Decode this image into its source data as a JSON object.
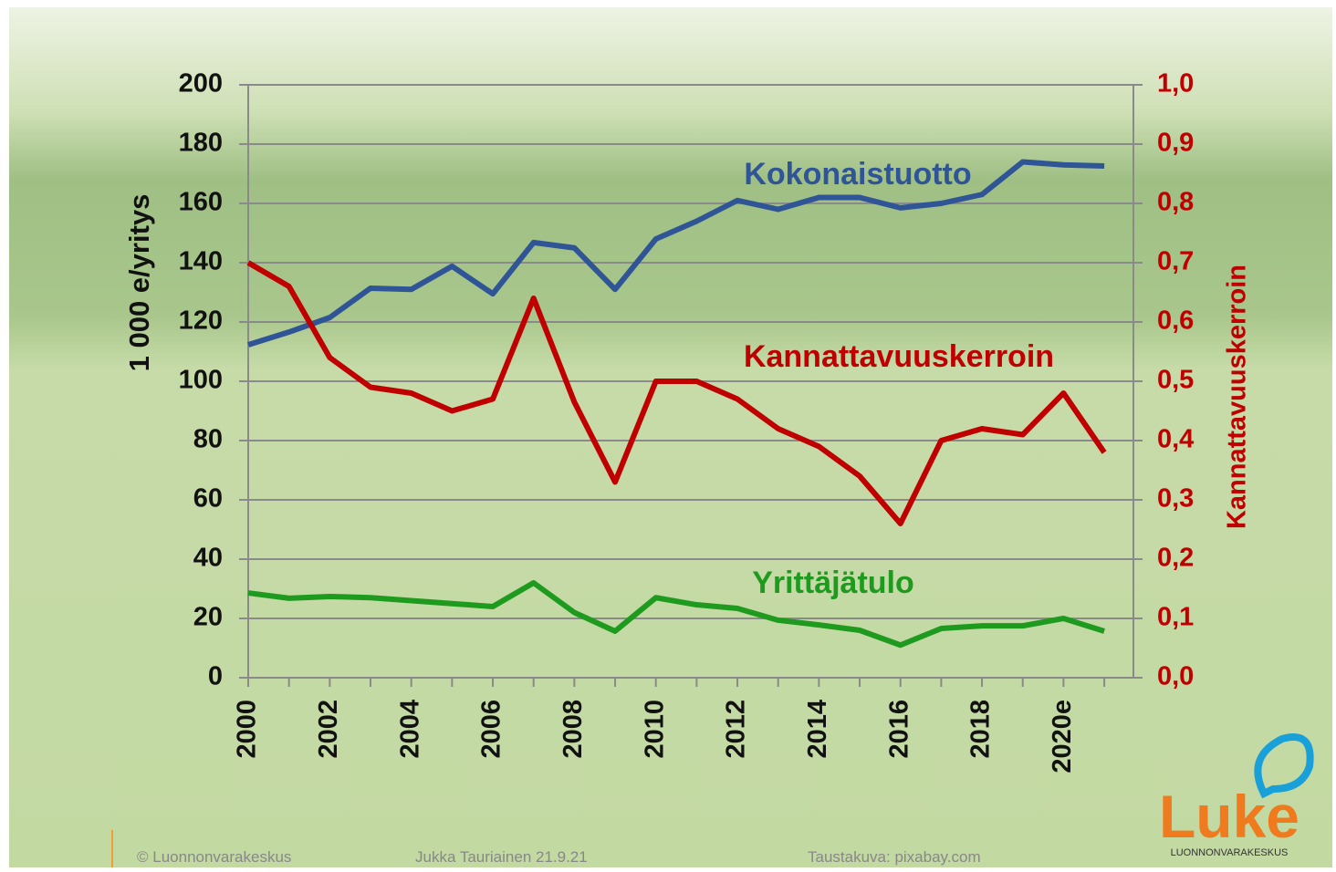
{
  "chart_data": {
    "type": "line",
    "categories": [
      "2000",
      null,
      "2002",
      null,
      "2004",
      null,
      "2006",
      null,
      "2008",
      null,
      "2010",
      null,
      "2012",
      null,
      "2014",
      null,
      "2016",
      null,
      "2018",
      null,
      "2020e",
      null
    ],
    "series": [
      {
        "name": "Kokonaistuotto",
        "color": "#2f5597",
        "values": [
          112.3,
          116.6,
          121.5,
          131.4,
          131,
          138.8,
          129.5,
          146.8,
          145,
          131,
          148,
          154,
          161,
          158,
          162,
          162,
          158.5,
          160,
          163,
          174,
          173,
          172.6
        ]
      },
      {
        "name": "Kannattavuuskerroin",
        "color": "#c00000",
        "axis": "y2",
        "values": [
          0.7,
          0.66,
          0.54,
          0.49,
          0.48,
          0.45,
          0.47,
          0.64,
          0.465,
          0.33,
          0.5,
          0.5,
          0.47,
          0.42,
          0.39,
          0.34,
          0.26,
          0.4,
          0.42,
          0.41,
          0.48,
          0.38
        ]
      },
      {
        "name": "Yrittäjätulo",
        "color": "#1e9b1e",
        "values": [
          28.6,
          26.8,
          27.4,
          27,
          26,
          25,
          24,
          32,
          22,
          15.7,
          27,
          24.6,
          23.4,
          19.4,
          17.8,
          16,
          11,
          16.6,
          17.5,
          17.5,
          20,
          15.7
        ]
      }
    ],
    "ylabel": "1 000 e/yritys",
    "y2label": "Kannattavuuskerroin",
    "ylim": [
      0,
      200
    ],
    "yticks": [
      0,
      20,
      40,
      60,
      80,
      100,
      120,
      140,
      160,
      180,
      200
    ],
    "y2lim": [
      0,
      1
    ],
    "y2ticks": [
      {
        "value": 0,
        "label": "0,0"
      },
      {
        "value": 0.1,
        "label": "0,1"
      },
      {
        "value": 0.2,
        "label": "0,2"
      },
      {
        "value": 0.3,
        "label": "0,3"
      },
      {
        "value": 0.4,
        "label": "0,4"
      },
      {
        "value": 0.5,
        "label": "0,5"
      },
      {
        "value": 0.6,
        "label": "0,6"
      },
      {
        "value": 0.7,
        "label": "0,7"
      },
      {
        "value": 0.8,
        "label": "0,8"
      },
      {
        "value": 0.9,
        "label": "0,9"
      },
      {
        "value": 1,
        "label": "1,0"
      }
    ],
    "grid": true
  },
  "footer": {
    "copyright": "© Luonnonvarakeskus",
    "author": "Jukka Tauriainen 21.9.21",
    "credit": "Taustakuva: pixabay.com"
  },
  "logo": {
    "name": "Luke",
    "subtitle": "LUONNONVARAKESKUS"
  }
}
